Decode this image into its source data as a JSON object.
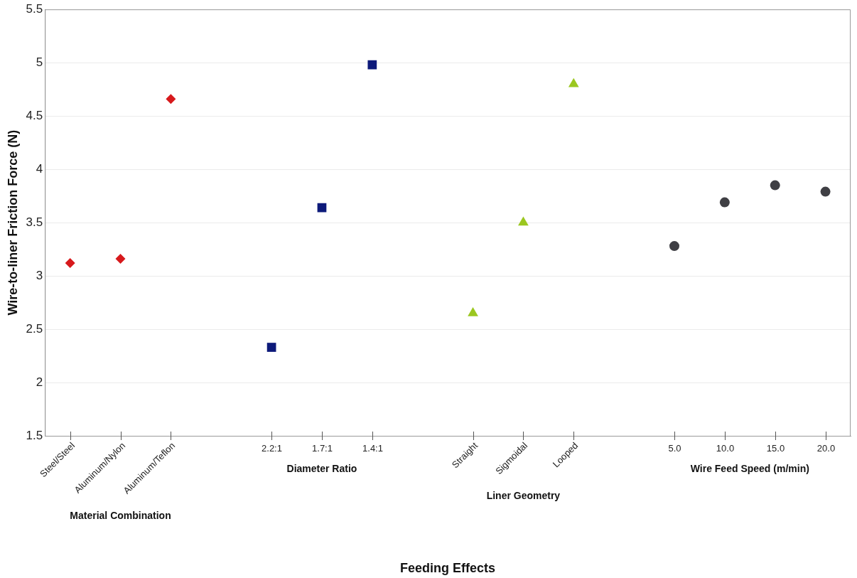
{
  "chart_data": {
    "type": "scatter",
    "ylabel": "Wire-to-liner Friction Force (N)",
    "categories": [
      "Steel/Steel",
      "Aluminum/Nylon",
      "Aluminum/Teflon",
      null,
      "2.2:1",
      "1.7:1",
      "1.4:1",
      null,
      "Straight",
      "Sigmoidal",
      "Looped",
      null,
      "5.0",
      "10.0",
      "15.0",
      "20.0"
    ],
    "series": [
      {
        "color": "#d7191c",
        "marker": "diamond",
        "values": [
          3.12,
          3.16,
          4.66,
          null,
          null,
          null,
          null,
          null,
          null,
          null,
          null,
          null,
          null,
          null,
          null,
          null
        ]
      },
      {
        "color": "#0d1a7a",
        "marker": "square",
        "values": [
          null,
          null,
          null,
          null,
          2.33,
          3.64,
          4.98,
          null,
          null,
          null,
          null,
          null,
          null,
          null,
          null,
          null
        ]
      },
      {
        "color": "#9bc720",
        "marker": "triangle",
        "values": [
          null,
          null,
          null,
          null,
          null,
          null,
          null,
          null,
          2.65,
          3.5,
          4.8,
          null,
          null,
          null,
          null,
          null
        ]
      },
      {
        "color": "#3f3f44",
        "marker": "circle",
        "values": [
          null,
          null,
          null,
          null,
          null,
          null,
          null,
          null,
          null,
          null,
          null,
          null,
          3.28,
          3.69,
          3.85,
          3.79
        ]
      }
    ],
    "ylim": [
      1.5,
      5.5
    ],
    "yticks": [
      1.5,
      2,
      2.5,
      3,
      3.5,
      4,
      4.5,
      5,
      5.5
    ],
    "grid": "y",
    "legend": false,
    "annotations": [
      "Material Combination",
      "Diameter Ratio",
      "Liner Geometry",
      "Wire Feed Speed (m/min)",
      "Feeding Effects"
    ]
  }
}
